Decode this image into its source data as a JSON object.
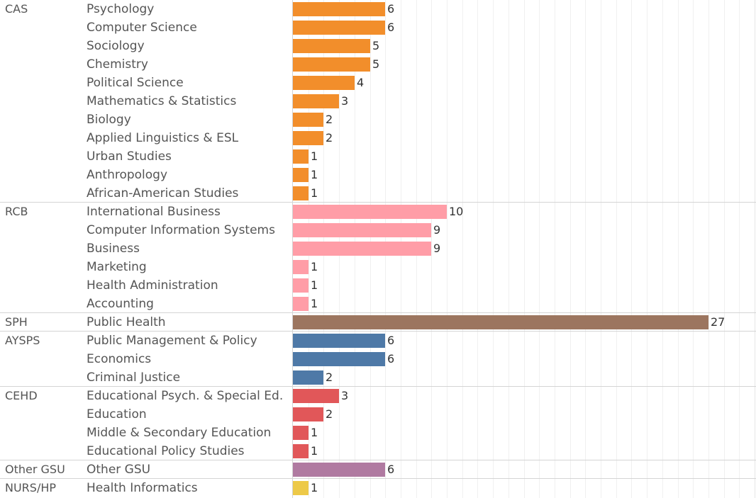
{
  "chart_data": {
    "type": "bar",
    "orientation": "horizontal",
    "title": "",
    "xlabel": "",
    "ylabel": "",
    "xlim": [
      0,
      30
    ],
    "grid": true,
    "groups": [
      {
        "college": "CAS",
        "color": "#f28e2b",
        "rows": [
          {
            "dept": "Psychology",
            "value": 6
          },
          {
            "dept": "Computer Science",
            "value": 6
          },
          {
            "dept": "Sociology",
            "value": 5
          },
          {
            "dept": "Chemistry",
            "value": 5
          },
          {
            "dept": "Political Science",
            "value": 4
          },
          {
            "dept": "Mathematics & Statistics",
            "value": 3
          },
          {
            "dept": "Biology",
            "value": 2
          },
          {
            "dept": "Applied Linguistics & ESL",
            "value": 2
          },
          {
            "dept": "Urban Studies",
            "value": 1
          },
          {
            "dept": "Anthropology",
            "value": 1
          },
          {
            "dept": "African-American Studies",
            "value": 1
          }
        ]
      },
      {
        "college": "RCB",
        "color": "#ff9da7",
        "rows": [
          {
            "dept": "International Business",
            "value": 10
          },
          {
            "dept": "Computer Information Systems",
            "value": 9
          },
          {
            "dept": "Business",
            "value": 9
          },
          {
            "dept": "Marketing",
            "value": 1
          },
          {
            "dept": "Health Administration",
            "value": 1
          },
          {
            "dept": "Accounting",
            "value": 1
          }
        ]
      },
      {
        "college": "SPH",
        "color": "#9c755f",
        "rows": [
          {
            "dept": "Public Health",
            "value": 27
          }
        ]
      },
      {
        "college": "AYSPS",
        "color": "#4e79a7",
        "rows": [
          {
            "dept": "Public Management & Policy",
            "value": 6
          },
          {
            "dept": "Economics",
            "value": 6
          },
          {
            "dept": "Criminal Justice",
            "value": 2
          }
        ]
      },
      {
        "college": "CEHD",
        "color": "#e15759",
        "rows": [
          {
            "dept": "Educational Psych. & Special Ed.",
            "value": 3
          },
          {
            "dept": "Education",
            "value": 2
          },
          {
            "dept": "Middle & Secondary Education",
            "value": 1
          },
          {
            "dept": "Educational Policy Studies",
            "value": 1
          }
        ]
      },
      {
        "college": "Other GSU",
        "color": "#b07aa1",
        "rows": [
          {
            "dept": "Other GSU",
            "value": 6
          }
        ]
      },
      {
        "college": "NURS/HP",
        "color": "#edc948",
        "rows": [
          {
            "dept": "Health Informatics",
            "value": 1
          }
        ]
      }
    ]
  }
}
